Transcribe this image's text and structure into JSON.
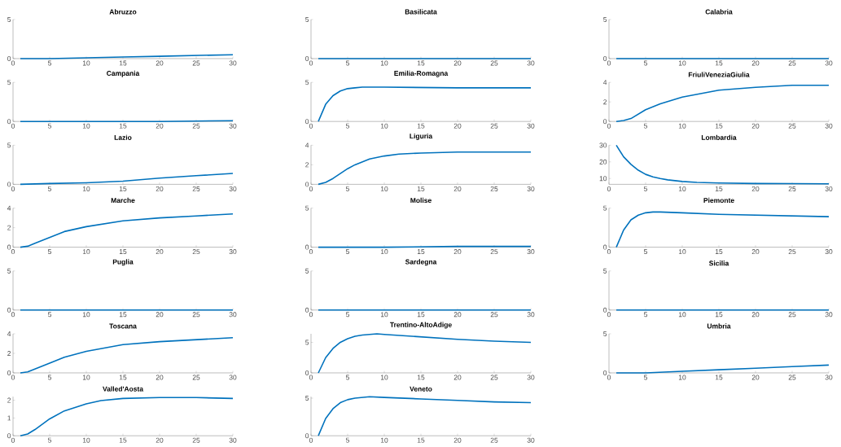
{
  "chart_data": [
    {
      "type": "line",
      "title": "Abruzzo",
      "color": "#0072bd",
      "x": [
        1,
        5,
        10,
        15,
        20,
        25,
        30
      ],
      "values": [
        0,
        0,
        0.1,
        0.2,
        0.3,
        0.4,
        0.5
      ],
      "xlim": [
        0,
        30
      ],
      "xticks": [
        0,
        5,
        10,
        15,
        20,
        25,
        30
      ],
      "ylim": [
        0,
        5
      ],
      "yticks": [
        0,
        5
      ]
    },
    {
      "type": "line",
      "title": "Basilicata",
      "color": "#0072bd",
      "x": [
        1,
        10,
        20,
        30
      ],
      "values": [
        0,
        0,
        0,
        0
      ],
      "xlim": [
        0,
        30
      ],
      "xticks": [
        0,
        5,
        10,
        15,
        20,
        25,
        30
      ],
      "ylim": [
        0,
        5
      ],
      "yticks": [
        0,
        5
      ]
    },
    {
      "type": "line",
      "title": "Calabria",
      "color": "#0072bd",
      "x": [
        1,
        10,
        20,
        30
      ],
      "values": [
        0,
        0,
        0,
        0
      ],
      "xlim": [
        0,
        30
      ],
      "xticks": [
        0,
        5,
        10,
        15,
        20,
        25,
        30
      ],
      "ylim": [
        0,
        5
      ],
      "yticks": [
        0,
        5
      ]
    },
    {
      "type": "line",
      "title": "Campania",
      "color": "#0072bd",
      "x": [
        1,
        10,
        20,
        30
      ],
      "values": [
        0,
        0,
        0,
        0.1
      ],
      "xlim": [
        0,
        30
      ],
      "xticks": [
        0,
        5,
        10,
        15,
        20,
        25,
        30
      ],
      "ylim": [
        0,
        5
      ],
      "yticks": [
        0,
        5
      ]
    },
    {
      "type": "line",
      "title": "Emilia-Romagna",
      "color": "#0072bd",
      "x": [
        1,
        2,
        3,
        4,
        5,
        6,
        7,
        10,
        20,
        30
      ],
      "values": [
        0,
        2.2,
        3.3,
        3.9,
        4.2,
        4.3,
        4.4,
        4.4,
        4.3,
        4.3
      ],
      "xlim": [
        0,
        30
      ],
      "xticks": [
        0,
        5,
        10,
        15,
        20,
        25,
        30
      ],
      "ylim": [
        0,
        5
      ],
      "yticks": [
        0,
        5
      ]
    },
    {
      "type": "line",
      "title": "FriuliVeneziaGiulia",
      "color": "#0072bd",
      "x": [
        1,
        2,
        3,
        5,
        7,
        10,
        15,
        20,
        25,
        30
      ],
      "values": [
        0,
        0.1,
        0.3,
        1.2,
        1.8,
        2.5,
        3.2,
        3.5,
        3.7,
        3.7
      ],
      "xlim": [
        0,
        30
      ],
      "xticks": [
        0,
        5,
        10,
        15,
        20,
        25,
        30
      ],
      "ylim": [
        0,
        4
      ],
      "yticks": [
        0,
        2,
        4
      ]
    },
    {
      "type": "line",
      "title": "Lazio",
      "color": "#0072bd",
      "x": [
        1,
        5,
        10,
        15,
        20,
        25,
        30
      ],
      "values": [
        0,
        0.1,
        0.2,
        0.4,
        0.8,
        1.1,
        1.4
      ],
      "xlim": [
        0,
        30
      ],
      "xticks": [
        0,
        5,
        10,
        15,
        20,
        25,
        30
      ],
      "ylim": [
        0,
        5
      ],
      "yticks": [
        0,
        5
      ]
    },
    {
      "type": "line",
      "title": "Liguria",
      "color": "#0072bd",
      "x": [
        1,
        2,
        3,
        4,
        5,
        6,
        7,
        8,
        10,
        12,
        15,
        20,
        25,
        30
      ],
      "values": [
        0,
        0.2,
        0.6,
        1.1,
        1.6,
        2.0,
        2.3,
        2.6,
        2.9,
        3.1,
        3.2,
        3.3,
        3.3,
        3.3
      ],
      "xlim": [
        0,
        30
      ],
      "xticks": [
        0,
        5,
        10,
        15,
        20,
        25,
        30
      ],
      "ylim": [
        0,
        4
      ],
      "yticks": [
        0,
        2,
        4
      ]
    },
    {
      "type": "line",
      "title": "Lombardia",
      "color": "#0072bd",
      "x": [
        1,
        2,
        3,
        4,
        5,
        6,
        7,
        8,
        10,
        12,
        15,
        20,
        25,
        30
      ],
      "values": [
        30,
        23,
        18.5,
        15,
        12.5,
        11,
        10,
        9.2,
        8.2,
        7.7,
        7.3,
        7.0,
        6.9,
        6.8
      ],
      "xlim": [
        0,
        30
      ],
      "xticks": [
        0,
        5,
        10,
        15,
        20,
        25,
        30
      ],
      "ylim": [
        6.5,
        30
      ],
      "yticks": [
        10,
        20,
        30
      ]
    },
    {
      "type": "line",
      "title": "Marche",
      "color": "#0072bd",
      "x": [
        1,
        2,
        3,
        5,
        7,
        10,
        15,
        20,
        25,
        30
      ],
      "values": [
        0,
        0.1,
        0.4,
        1.0,
        1.6,
        2.1,
        2.7,
        3.0,
        3.2,
        3.4
      ],
      "xlim": [
        0,
        30
      ],
      "xticks": [
        0,
        5,
        10,
        15,
        20,
        25,
        30
      ],
      "ylim": [
        0,
        4
      ],
      "yticks": [
        0,
        2,
        4
      ]
    },
    {
      "type": "line",
      "title": "Molise",
      "color": "#0072bd",
      "x": [
        1,
        10,
        20,
        30
      ],
      "values": [
        0,
        0,
        0.1,
        0.1
      ],
      "xlim": [
        0,
        30
      ],
      "xticks": [
        0,
        5,
        10,
        15,
        20,
        25,
        30
      ],
      "ylim": [
        0,
        5
      ],
      "yticks": [
        0,
        5
      ]
    },
    {
      "type": "line",
      "title": "Piemonte",
      "color": "#0072bd",
      "x": [
        1,
        2,
        3,
        4,
        5,
        6,
        7,
        10,
        15,
        20,
        25,
        30
      ],
      "values": [
        0,
        2.2,
        3.5,
        4.1,
        4.4,
        4.5,
        4.5,
        4.4,
        4.2,
        4.1,
        4.0,
        3.9
      ],
      "xlim": [
        0,
        30
      ],
      "xticks": [
        0,
        5,
        10,
        15,
        20,
        25,
        30
      ],
      "ylim": [
        0,
        5
      ],
      "yticks": [
        0,
        5
      ]
    },
    {
      "type": "line",
      "title": "Puglia",
      "color": "#0072bd",
      "x": [
        1,
        10,
        20,
        30
      ],
      "values": [
        0,
        0,
        0,
        0
      ],
      "xlim": [
        0,
        30
      ],
      "xticks": [
        0,
        5,
        10,
        15,
        20,
        25,
        30
      ],
      "ylim": [
        0,
        5
      ],
      "yticks": [
        0,
        5
      ]
    },
    {
      "type": "line",
      "title": "Sardegna",
      "color": "#0072bd",
      "x": [
        1,
        10,
        20,
        30
      ],
      "values": [
        0,
        0,
        0,
        0
      ],
      "xlim": [
        0,
        30
      ],
      "xticks": [
        0,
        5,
        10,
        15,
        20,
        25,
        30
      ],
      "ylim": [
        0,
        5
      ],
      "yticks": [
        0,
        5
      ]
    },
    {
      "type": "line",
      "title": "Sicilia",
      "color": "#0072bd",
      "x": [
        1,
        10,
        20,
        30
      ],
      "values": [
        0,
        0,
        0,
        0
      ],
      "xlim": [
        0,
        30
      ],
      "xticks": [
        0,
        5,
        10,
        15,
        20,
        25,
        30
      ],
      "ylim": [
        0,
        5
      ],
      "yticks": [
        0,
        5
      ]
    },
    {
      "type": "line",
      "title": "Toscana",
      "color": "#0072bd",
      "x": [
        1,
        2,
        5,
        7,
        10,
        15,
        20,
        25,
        30
      ],
      "values": [
        0,
        0.1,
        1.0,
        1.6,
        2.2,
        2.9,
        3.2,
        3.4,
        3.6
      ],
      "xlim": [
        0,
        30
      ],
      "xticks": [
        0,
        5,
        10,
        15,
        20,
        25,
        30
      ],
      "ylim": [
        0,
        4
      ],
      "yticks": [
        0,
        2,
        4
      ]
    },
    {
      "type": "line",
      "title": "Trentino-AltoAdige",
      "color": "#0072bd",
      "x": [
        1,
        2,
        3,
        4,
        5,
        6,
        7,
        8,
        9,
        10,
        15,
        20,
        25,
        30
      ],
      "values": [
        0,
        2.5,
        4.0,
        5.0,
        5.6,
        6.0,
        6.2,
        6.3,
        6.4,
        6.3,
        5.9,
        5.5,
        5.2,
        5.0
      ],
      "xlim": [
        0,
        30
      ],
      "xticks": [
        0,
        5,
        10,
        15,
        20,
        25,
        30
      ],
      "ylim": [
        0,
        6.4
      ],
      "yticks": [
        0,
        5
      ]
    },
    {
      "type": "line",
      "title": "Umbria",
      "color": "#0072bd",
      "x": [
        1,
        5,
        10,
        15,
        20,
        25,
        30
      ],
      "values": [
        0,
        0,
        0.2,
        0.4,
        0.6,
        0.8,
        1.0
      ],
      "xlim": [
        0,
        30
      ],
      "xticks": [
        0,
        5,
        10,
        15,
        20,
        25,
        30
      ],
      "ylim": [
        0,
        5
      ],
      "yticks": [
        0,
        5
      ]
    },
    {
      "type": "line",
      "title": "Valled'Aosta",
      "color": "#0072bd",
      "x": [
        1,
        2,
        3,
        5,
        7,
        10,
        12,
        15,
        20,
        25,
        30
      ],
      "values": [
        0,
        0.1,
        0.35,
        0.95,
        1.4,
        1.8,
        1.98,
        2.1,
        2.15,
        2.15,
        2.1
      ],
      "xlim": [
        0,
        30
      ],
      "xticks": [
        0,
        5,
        10,
        15,
        20,
        25,
        30
      ],
      "ylim": [
        0,
        2.2
      ],
      "yticks": [
        0,
        1,
        2
      ]
    },
    {
      "type": "line",
      "title": "Veneto",
      "color": "#0072bd",
      "x": [
        1,
        2,
        3,
        4,
        5,
        6,
        7,
        8,
        10,
        15,
        20,
        25,
        30
      ],
      "values": [
        0,
        2.3,
        3.6,
        4.4,
        4.8,
        5.0,
        5.1,
        5.2,
        5.1,
        4.9,
        4.7,
        4.5,
        4.4
      ],
      "xlim": [
        0,
        30
      ],
      "xticks": [
        0,
        5,
        10,
        15,
        20,
        25,
        30
      ],
      "ylim": [
        0,
        5.2
      ],
      "yticks": [
        0,
        5
      ]
    }
  ]
}
